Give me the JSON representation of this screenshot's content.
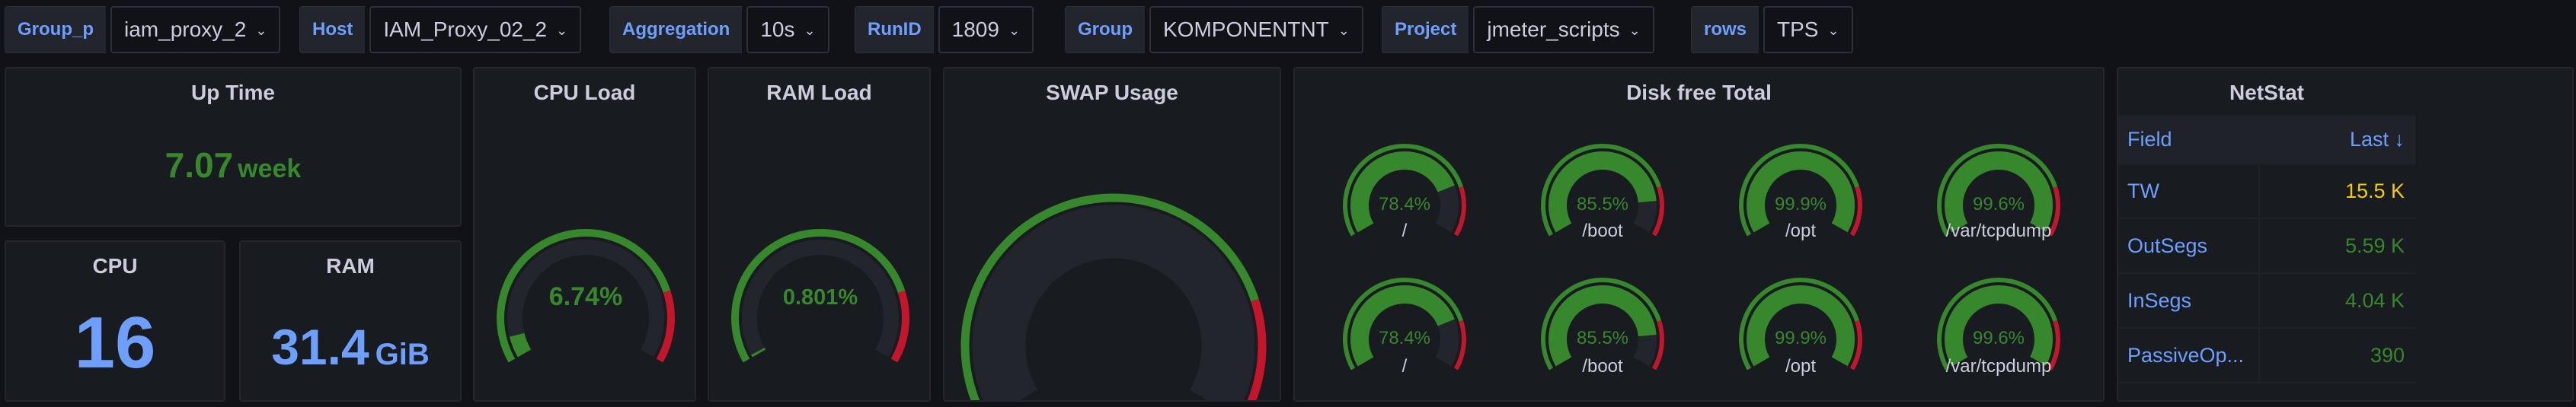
{
  "variables": [
    {
      "label": "Group_p",
      "value": "iam_proxy_2"
    },
    {
      "label": "Host",
      "value": "IAM_Proxy_02_2"
    },
    {
      "label": "Aggregation",
      "value": "10s"
    },
    {
      "label": "RunID",
      "value": "1809"
    },
    {
      "label": "Group",
      "value": "KOMPONENTNT"
    },
    {
      "label": "Project",
      "value": "jmeter_scripts"
    },
    {
      "label": "rows",
      "value": "TPS"
    }
  ],
  "panels": {
    "uptime": {
      "title": "Up Time",
      "value": "7.07",
      "unit": "week"
    },
    "cpu": {
      "title": "CPU",
      "value": "16"
    },
    "ram": {
      "title": "RAM",
      "value": "31.4",
      "unit": "GiB"
    },
    "cpu_load": {
      "title": "CPU Load",
      "value_text": "6.74%",
      "fraction": 0.0674
    },
    "ram_load": {
      "title": "RAM Load",
      "value_text": "0.801%",
      "fraction": 0.00801
    },
    "swap": {
      "title": "SWAP Usage",
      "fraction": 0
    },
    "disk": {
      "title": "Disk free Total",
      "gauges": [
        {
          "value_text": "78.4%",
          "fraction": 0.784,
          "mount": "/"
        },
        {
          "value_text": "85.5%",
          "fraction": 0.855,
          "mount": "/boot"
        },
        {
          "value_text": "99.9%",
          "fraction": 0.999,
          "mount": "/opt"
        },
        {
          "value_text": "99.6%",
          "fraction": 0.996,
          "mount": "/var/tcpdump"
        },
        {
          "value_text": "78.4%",
          "fraction": 0.784,
          "mount": "/"
        },
        {
          "value_text": "85.5%",
          "fraction": 0.855,
          "mount": "/boot"
        },
        {
          "value_text": "99.9%",
          "fraction": 0.999,
          "mount": "/opt"
        },
        {
          "value_text": "99.6%",
          "fraction": 0.996,
          "mount": "/var/tcpdump"
        }
      ]
    },
    "netstat": {
      "title": "NetStat",
      "headers": {
        "field": "Field",
        "last": "Last ↓"
      },
      "rows": [
        {
          "field": "TW",
          "last": "15.5 K",
          "color": "#f2cc0c"
        },
        {
          "field": "OutSegs",
          "last": "5.59 K",
          "color": "#37872d"
        },
        {
          "field": "InSegs",
          "last": "4.04 K",
          "color": "#37872d"
        },
        {
          "field": "PassiveOp...",
          "last": "390",
          "color": "#37872d"
        }
      ]
    }
  },
  "colors": {
    "green": "#37872d",
    "red": "#c4162a",
    "orange": "#ff780a",
    "blue": "#6e9fff",
    "yellow": "#f2cc0c"
  }
}
